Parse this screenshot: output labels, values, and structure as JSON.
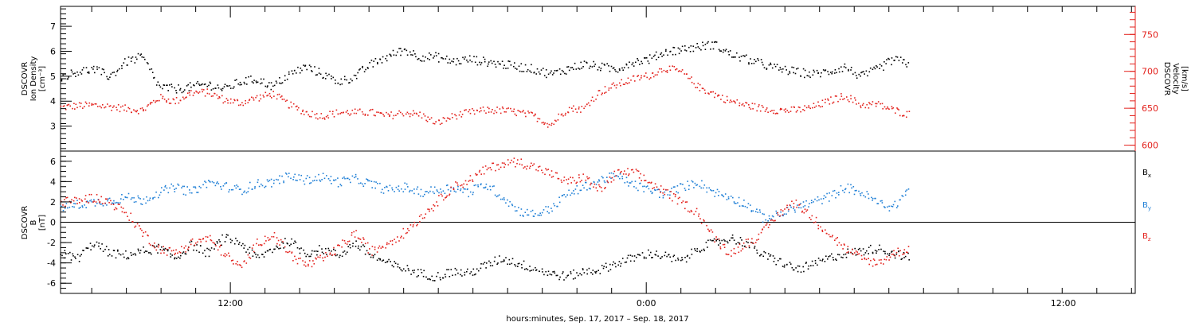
{
  "chart_data": [
    {
      "type": "scatter",
      "panel": "plasma",
      "ylabel_left": [
        "DSCOVR",
        "Ion Density",
        "[cm⁻³]"
      ],
      "ylabel_right": [
        "DSCOVR",
        "Velocity",
        "[km/s]"
      ],
      "ylim_left": [
        2.0,
        7.8
      ],
      "ylim_right": [
        592,
        788
      ],
      "yticks_left": [
        3,
        4,
        5,
        6,
        7
      ],
      "yticks_right": [
        600,
        650,
        700,
        750
      ],
      "colors": {
        "density": "#000000",
        "velocity": "#e3211c"
      },
      "series": [
        {
          "axis": "left",
          "points": [
            [
              0,
              5.0
            ],
            [
              1,
              5.2
            ],
            [
              2,
              5.3
            ],
            [
              3,
              5.0
            ],
            [
              4,
              5.6
            ],
            [
              5,
              5.8
            ],
            [
              6,
              4.6
            ],
            [
              7,
              4.5
            ],
            [
              8,
              4.6
            ],
            [
              9,
              4.7
            ],
            [
              10,
              4.5
            ],
            [
              11,
              4.8
            ],
            [
              12,
              4.9
            ],
            [
              13,
              4.6
            ],
            [
              14,
              5.1
            ],
            [
              15,
              5.4
            ],
            [
              16,
              5.1
            ],
            [
              17,
              4.8
            ],
            [
              18,
              5.0
            ],
            [
              19,
              5.5
            ],
            [
              20,
              5.8
            ],
            [
              21,
              6.1
            ],
            [
              22,
              5.8
            ],
            [
              23,
              5.8
            ],
            [
              24,
              5.6
            ],
            [
              25,
              5.7
            ],
            [
              26,
              5.6
            ],
            [
              27,
              5.5
            ],
            [
              28,
              5.4
            ],
            [
              29,
              5.3
            ],
            [
              30,
              5.1
            ],
            [
              31,
              5.3
            ],
            [
              32,
              5.5
            ],
            [
              33,
              5.4
            ],
            [
              34,
              5.3
            ],
            [
              35,
              5.6
            ],
            [
              36,
              5.7
            ],
            [
              37,
              6.0
            ],
            [
              38,
              6.1
            ],
            [
              39,
              6.2
            ],
            [
              40,
              6.3
            ],
            [
              41,
              5.9
            ],
            [
              42,
              5.7
            ],
            [
              43,
              5.5
            ],
            [
              44,
              5.3
            ],
            [
              45,
              5.2
            ],
            [
              46,
              5.1
            ],
            [
              47,
              5.2
            ],
            [
              48,
              5.4
            ],
            [
              49,
              5.0
            ],
            [
              50,
              5.3
            ],
            [
              51,
              5.7
            ],
            [
              52,
              5.5
            ]
          ]
        },
        {
          "axis": "right",
          "points": [
            [
              0,
              652
            ],
            [
              1,
              654
            ],
            [
              2,
              655
            ],
            [
              3,
              653
            ],
            [
              4,
              650
            ],
            [
              5,
              648
            ],
            [
              6,
              665
            ],
            [
              7,
              660
            ],
            [
              8,
              672
            ],
            [
              9,
              672
            ],
            [
              10,
              662
            ],
            [
              11,
              658
            ],
            [
              12,
              665
            ],
            [
              13,
              670
            ],
            [
              14,
              655
            ],
            [
              15,
              645
            ],
            [
              16,
              640
            ],
            [
              17,
              645
            ],
            [
              18,
              645
            ],
            [
              19,
              645
            ],
            [
              20,
              640
            ],
            [
              21,
              645
            ],
            [
              22,
              642
            ],
            [
              23,
              630
            ],
            [
              24,
              640
            ],
            [
              25,
              645
            ],
            [
              26,
              648
            ],
            [
              27,
              648
            ],
            [
              28,
              645
            ],
            [
              29,
              640
            ],
            [
              30,
              628
            ],
            [
              31,
              650
            ],
            [
              32,
              650
            ],
            [
              33,
              673
            ],
            [
              34,
              682
            ],
            [
              35,
              690
            ],
            [
              36,
              695
            ],
            [
              37,
              705
            ],
            [
              38,
              700
            ],
            [
              39,
              680
            ],
            [
              40,
              670
            ],
            [
              41,
              660
            ],
            [
              42,
              655
            ],
            [
              43,
              650
            ],
            [
              44,
              648
            ],
            [
              45,
              648
            ],
            [
              46,
              652
            ],
            [
              47,
              660
            ],
            [
              48,
              668
            ],
            [
              49,
              655
            ],
            [
              50,
              656
            ],
            [
              51,
              648
            ],
            [
              52,
              642
            ]
          ]
        }
      ]
    },
    {
      "type": "scatter",
      "panel": "magnetic-field",
      "ylabel_left": [
        "DSCOVR",
        "B",
        "[nT]"
      ],
      "ylim": [
        -7.0,
        7.0
      ],
      "yticks": [
        -6,
        -4,
        -2,
        0,
        2,
        4,
        6
      ],
      "zero_line": true,
      "legend": [
        {
          "name": "Bx",
          "base": "B",
          "sub": "x",
          "color": "#000000"
        },
        {
          "name": "By",
          "base": "B",
          "sub": "y",
          "color": "#1f7fd6"
        },
        {
          "name": "Bz",
          "base": "B",
          "sub": "z",
          "color": "#e3211c"
        }
      ],
      "series": [
        {
          "name": "Bx",
          "points": [
            [
              0,
              -3.0
            ],
            [
              1,
              -3.5
            ],
            [
              2,
              -2.0
            ],
            [
              3,
              -3.0
            ],
            [
              4,
              -3.2
            ],
            [
              5,
              -2.8
            ],
            [
              6,
              -2.5
            ],
            [
              7,
              -3.5
            ],
            [
              8,
              -2.2
            ],
            [
              9,
              -3.0
            ],
            [
              10,
              -1.5
            ],
            [
              11,
              -2.0
            ],
            [
              12,
              -3.5
            ],
            [
              13,
              -2.5
            ],
            [
              14,
              -1.8
            ],
            [
              15,
              -3.0
            ],
            [
              16,
              -2.6
            ],
            [
              17,
              -3.2
            ],
            [
              18,
              -2.0
            ],
            [
              19,
              -3.2
            ],
            [
              20,
              -4.0
            ],
            [
              21,
              -4.5
            ],
            [
              22,
              -5.0
            ],
            [
              23,
              -5.3
            ],
            [
              24,
              -4.8
            ],
            [
              25,
              -5.0
            ],
            [
              26,
              -4.2
            ],
            [
              27,
              -3.5
            ],
            [
              28,
              -4.0
            ],
            [
              29,
              -4.5
            ],
            [
              30,
              -5.0
            ],
            [
              31,
              -5.3
            ],
            [
              32,
              -4.8
            ],
            [
              33,
              -4.6
            ],
            [
              34,
              -4.0
            ],
            [
              35,
              -3.5
            ],
            [
              36,
              -3.0
            ],
            [
              37,
              -3.3
            ],
            [
              38,
              -3.8
            ],
            [
              39,
              -2.5
            ],
            [
              40,
              -2.0
            ],
            [
              41,
              -1.5
            ],
            [
              42,
              -2.0
            ],
            [
              43,
              -3.2
            ],
            [
              44,
              -3.8
            ],
            [
              45,
              -4.6
            ],
            [
              46,
              -4.2
            ],
            [
              47,
              -3.5
            ],
            [
              48,
              -3.0
            ],
            [
              49,
              -2.8
            ],
            [
              50,
              -2.5
            ],
            [
              51,
              -3.0
            ],
            [
              52,
              -3.5
            ]
          ]
        },
        {
          "name": "By",
          "points": [
            [
              0,
              1.5
            ],
            [
              1,
              1.8
            ],
            [
              2,
              2.0
            ],
            [
              3,
              2.2
            ],
            [
              4,
              2.5
            ],
            [
              5,
              2.2
            ],
            [
              6,
              3.0
            ],
            [
              7,
              3.5
            ],
            [
              8,
              3.0
            ],
            [
              9,
              4.0
            ],
            [
              10,
              3.6
            ],
            [
              11,
              3.2
            ],
            [
              12,
              3.8
            ],
            [
              13,
              4.0
            ],
            [
              14,
              4.6
            ],
            [
              15,
              4.2
            ],
            [
              16,
              4.5
            ],
            [
              17,
              4.0
            ],
            [
              18,
              4.3
            ],
            [
              19,
              3.8
            ],
            [
              20,
              3.2
            ],
            [
              21,
              3.5
            ],
            [
              22,
              3.0
            ],
            [
              23,
              3.2
            ],
            [
              24,
              3.5
            ],
            [
              25,
              3.0
            ],
            [
              26,
              3.8
            ],
            [
              27,
              2.6
            ],
            [
              28,
              1.2
            ],
            [
              29,
              0.8
            ],
            [
              30,
              1.4
            ],
            [
              31,
              2.8
            ],
            [
              32,
              3.5
            ],
            [
              33,
              4.2
            ],
            [
              34,
              4.6
            ],
            [
              35,
              3.8
            ],
            [
              36,
              3.2
            ],
            [
              37,
              2.8
            ],
            [
              38,
              3.5
            ],
            [
              39,
              4.0
            ],
            [
              40,
              3.0
            ],
            [
              41,
              2.5
            ],
            [
              42,
              1.8
            ],
            [
              43,
              0.5
            ],
            [
              44,
              0.8
            ],
            [
              45,
              1.5
            ],
            [
              46,
              2.0
            ],
            [
              47,
              2.5
            ],
            [
              48,
              3.5
            ],
            [
              49,
              3.0
            ],
            [
              50,
              2.0
            ],
            [
              51,
              1.5
            ],
            [
              52,
              3.5
            ]
          ]
        },
        {
          "name": "Bz",
          "points": [
            [
              0,
              2.0
            ],
            [
              1,
              2.2
            ],
            [
              2,
              2.5
            ],
            [
              3,
              2.0
            ],
            [
              4,
              1.0
            ],
            [
              5,
              -1.0
            ],
            [
              6,
              -2.5
            ],
            [
              7,
              -3.0
            ],
            [
              8,
              -2.0
            ],
            [
              9,
              -1.5
            ],
            [
              10,
              -3.0
            ],
            [
              11,
              -4.5
            ],
            [
              12,
              -2.0
            ],
            [
              13,
              -1.2
            ],
            [
              14,
              -3.0
            ],
            [
              15,
              -4.2
            ],
            [
              16,
              -3.6
            ],
            [
              17,
              -2.5
            ],
            [
              18,
              -1.0
            ],
            [
              19,
              -2.8
            ],
            [
              20,
              -2.0
            ],
            [
              21,
              -1.0
            ],
            [
              22,
              0.5
            ],
            [
              23,
              2.0
            ],
            [
              24,
              3.5
            ],
            [
              25,
              4.2
            ],
            [
              26,
              5.2
            ],
            [
              27,
              5.8
            ],
            [
              28,
              6.0
            ],
            [
              29,
              5.5
            ],
            [
              30,
              4.8
            ],
            [
              31,
              4.0
            ],
            [
              32,
              4.5
            ],
            [
              33,
              3.2
            ],
            [
              34,
              4.8
            ],
            [
              35,
              5.0
            ],
            [
              36,
              4.0
            ],
            [
              37,
              3.0
            ],
            [
              38,
              2.0
            ],
            [
              39,
              1.0
            ],
            [
              40,
              -1.5
            ],
            [
              41,
              -3.0
            ],
            [
              42,
              -2.0
            ],
            [
              43,
              -1.0
            ],
            [
              44,
              1.0
            ],
            [
              45,
              2.0
            ],
            [
              46,
              0.5
            ],
            [
              47,
              -1.0
            ],
            [
              48,
              -2.5
            ],
            [
              49,
              -3.5
            ],
            [
              50,
              -4.0
            ],
            [
              51,
              -3.0
            ],
            [
              52,
              -2.5
            ]
          ]
        }
      ]
    }
  ],
  "x_axis": {
    "xlim": [
      0,
      100
    ],
    "data_end": 79,
    "tick_labels": [
      {
        "x": 15.8,
        "label": "12:00"
      },
      {
        "x": 54.5,
        "label": "0:00"
      },
      {
        "x": 93.3,
        "label": "12:00"
      }
    ],
    "xlabel": "hours:minutes, Sep. 17, 2017 – Sep. 18, 2017"
  }
}
